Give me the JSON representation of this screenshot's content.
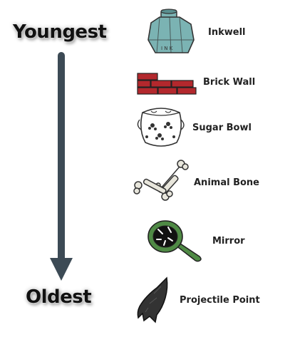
{
  "timeline": {
    "top_label": "Youngest",
    "bottom_label": "Oldest",
    "arrow_color": "#3c4a55"
  },
  "artifacts": [
    {
      "label": "Inkwell",
      "icon": "inkwell-icon",
      "color": "#7bb3b3"
    },
    {
      "label": "Brick Wall",
      "icon": "brick-wall-icon",
      "color": "#b3282d"
    },
    {
      "label": "Sugar Bowl",
      "icon": "sugar-bowl-icon",
      "color": "#ffffff"
    },
    {
      "label": "Animal Bone",
      "icon": "animal-bone-icon",
      "color": "#e8e6dc"
    },
    {
      "label": "Mirror",
      "icon": "mirror-icon",
      "color": "#4f8a45"
    },
    {
      "label": "Projectile Point",
      "icon": "projectile-point-icon",
      "color": "#333333"
    }
  ],
  "inkwell_letters": "I N K"
}
